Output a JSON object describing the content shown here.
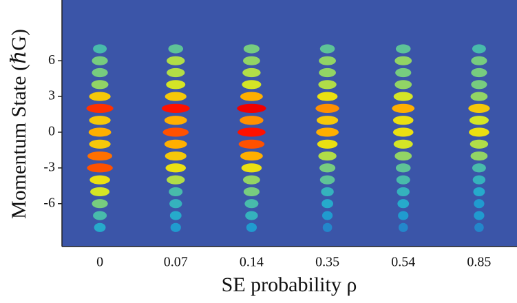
{
  "chart_data": {
    "type": "heatmap",
    "x_label": "SE probability ρ",
    "y_label": "Momentum State (ℏG)",
    "categories": [
      "0",
      "0.07",
      "0.14",
      "0.35",
      "0.54",
      "0.85"
    ],
    "ylim": [
      -9.6,
      11.1
    ],
    "yticks": [
      6,
      3,
      0,
      -3,
      -6
    ],
    "states": [
      -8,
      -7,
      -6,
      -5,
      -4,
      -3,
      -2,
      -1,
      0,
      1,
      2,
      3,
      4,
      5,
      6,
      7
    ],
    "columns": [
      {
        "values": [
          0.15,
          0.25,
          0.35,
          0.5,
          0.55,
          0.8,
          0.75,
          0.6,
          0.65,
          0.6,
          0.85,
          0.6,
          0.4,
          0.35,
          0.35,
          0.25
        ]
      },
      {
        "values": [
          0.1,
          0.15,
          0.2,
          0.25,
          0.45,
          0.55,
          0.6,
          0.65,
          0.8,
          0.65,
          0.9,
          0.6,
          0.5,
          0.45,
          0.45,
          0.3
        ]
      },
      {
        "values": [
          0.1,
          0.2,
          0.25,
          0.35,
          0.4,
          0.55,
          0.65,
          0.8,
          0.9,
          0.7,
          0.95,
          0.65,
          0.5,
          0.45,
          0.4,
          0.35
        ]
      },
      {
        "values": [
          0.05,
          0.1,
          0.15,
          0.2,
          0.3,
          0.35,
          0.45,
          0.55,
          0.65,
          0.6,
          0.7,
          0.55,
          0.45,
          0.4,
          0.4,
          0.3
        ]
      },
      {
        "values": [
          0.05,
          0.1,
          0.15,
          0.2,
          0.25,
          0.3,
          0.4,
          0.5,
          0.55,
          0.55,
          0.65,
          0.5,
          0.4,
          0.35,
          0.4,
          0.3
        ]
      },
      {
        "values": [
          0.05,
          0.1,
          0.1,
          0.15,
          0.2,
          0.25,
          0.4,
          0.45,
          0.55,
          0.5,
          0.6,
          0.4,
          0.35,
          0.35,
          0.35,
          0.25
        ]
      }
    ],
    "background": "#3b55a8"
  }
}
